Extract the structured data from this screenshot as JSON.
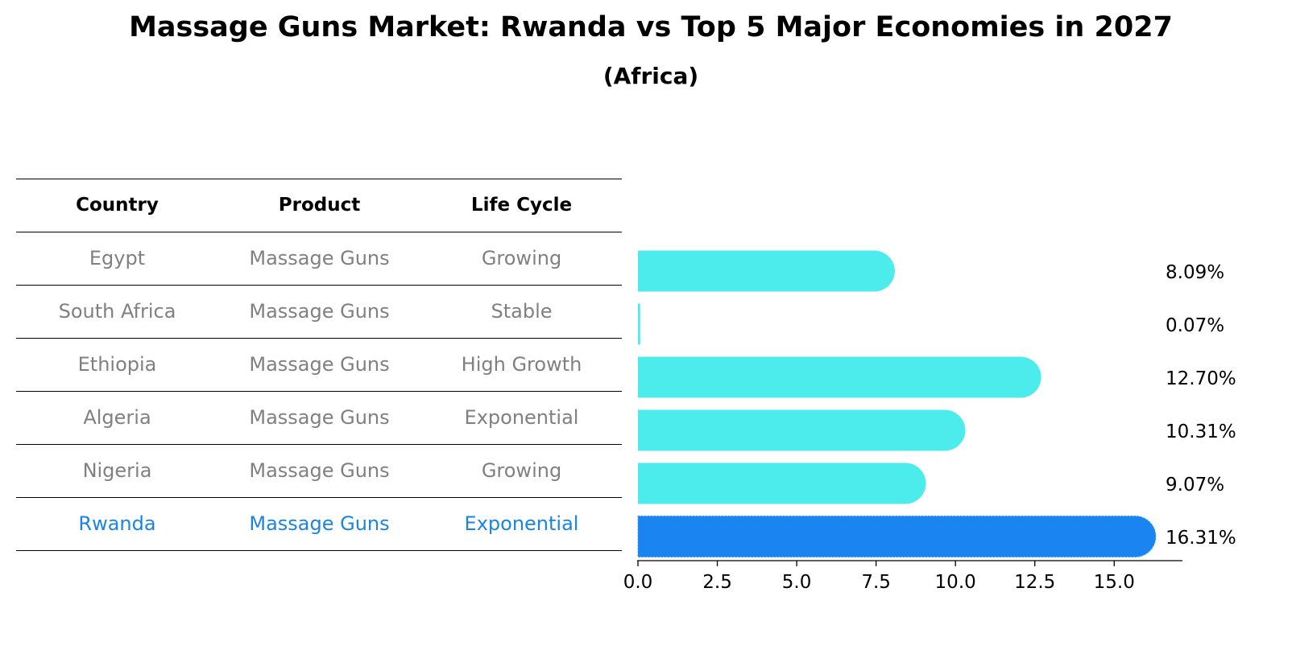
{
  "title": "Massage Guns Market: Rwanda vs Top 5 Major Economies in 2027",
  "subtitle": "(Africa)",
  "table": {
    "headers": [
      "Country",
      "Product",
      "Life Cycle"
    ],
    "rows": [
      {
        "country": "Egypt",
        "product": "Massage Guns",
        "life_cycle": "Growing"
      },
      {
        "country": "South Africa",
        "product": "Massage Guns",
        "life_cycle": "Stable"
      },
      {
        "country": "Ethiopia",
        "product": "Massage Guns",
        "life_cycle": "High Growth"
      },
      {
        "country": "Algeria",
        "product": "Massage Guns",
        "life_cycle": "Exponential"
      },
      {
        "country": "Nigeria",
        "product": "Massage Guns",
        "life_cycle": "Growing"
      },
      {
        "country": "Rwanda",
        "product": "Massage Guns",
        "life_cycle": "Exponential"
      }
    ]
  },
  "colors": {
    "bar": "#4cecec",
    "highlight_bar": "#1a85f0",
    "highlight_text": "#1a85e0",
    "muted_text": "#808080"
  },
  "chart_data": {
    "type": "bar",
    "orientation": "horizontal",
    "categories": [
      "Egypt",
      "South Africa",
      "Ethiopia",
      "Algeria",
      "Nigeria",
      "Rwanda"
    ],
    "values": [
      8.09,
      0.07,
      12.7,
      10.31,
      9.07,
      16.31
    ],
    "value_labels": [
      "8.09%",
      "0.07%",
      "12.70%",
      "10.31%",
      "9.07%",
      "16.31%"
    ],
    "highlight": "Rwanda",
    "xlim": [
      0,
      17.15
    ],
    "xticks": [
      0.0,
      2.5,
      5.0,
      7.5,
      10.0,
      12.5,
      15.0
    ],
    "xtick_labels": [
      "0.0",
      "2.5",
      "5.0",
      "7.5",
      "10.0",
      "12.5",
      "15.0"
    ],
    "xlabel": "",
    "ylabel": "",
    "grid": false
  }
}
